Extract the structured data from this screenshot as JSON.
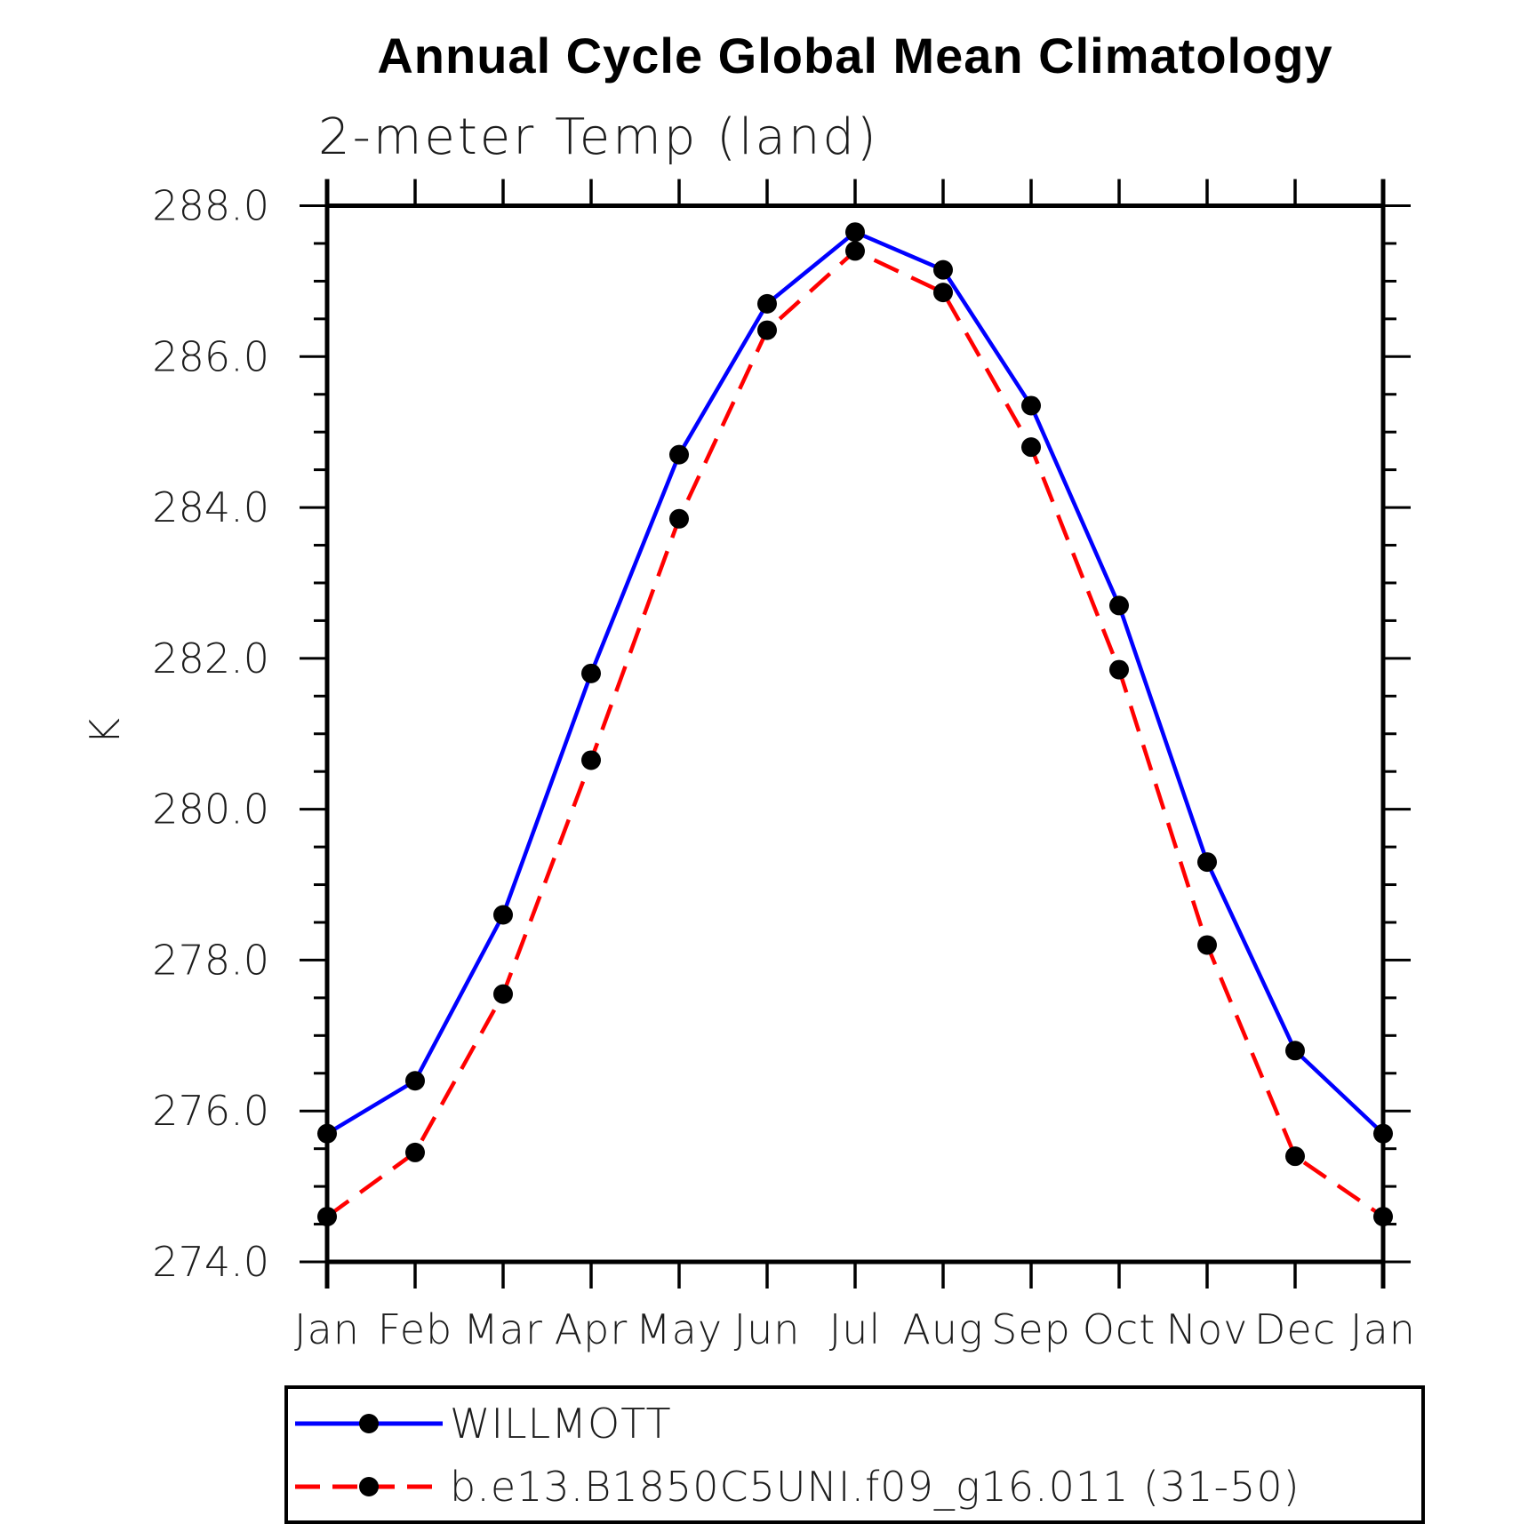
{
  "title": "Annual Cycle Global Mean Climatology",
  "subtitle": "2-meter Temp (land)",
  "chart_data": {
    "type": "line",
    "title": "Annual Cycle Global Mean Climatology",
    "subtitle": "2-meter Temp (land)",
    "ylabel": "K",
    "xlabel": "",
    "categories": [
      "Jan",
      "Feb",
      "Mar",
      "Apr",
      "May",
      "Jun",
      "Jul",
      "Aug",
      "Sep",
      "Oct",
      "Nov",
      "Dec",
      "Jan"
    ],
    "series": [
      {
        "name": "WILLMOTT",
        "color": "#0000ff",
        "line_style": "solid",
        "marker": "filled-black-circle",
        "values": [
          275.7,
          276.4,
          278.6,
          281.8,
          284.7,
          286.7,
          287.65,
          287.15,
          285.35,
          282.7,
          279.3,
          276.8,
          275.7
        ]
      },
      {
        "name": "b.e13.B1850C5UNI.f09_g16.011 (31-50)",
        "color": "#ff0000",
        "line_style": "dashed",
        "marker": "filled-black-circle",
        "values": [
          274.6,
          275.45,
          277.55,
          280.65,
          283.85,
          286.35,
          287.4,
          286.85,
          284.8,
          281.85,
          278.2,
          275.4,
          274.6
        ]
      }
    ],
    "ylim": [
      274.0,
      288.0
    ],
    "ytick_major_interval": 2.0,
    "ytick_minor_interval": 0.5,
    "ytick_labels": [
      "274.0",
      "276.0",
      "278.0",
      "280.0",
      "282.0",
      "284.0",
      "286.0",
      "288.0"
    ],
    "grid": false,
    "legend_position": "bottom"
  },
  "colors": {
    "series1": "#0000ff",
    "series2": "#ff0000",
    "marker": "#000000",
    "axis": "#000000",
    "background": "#ffffff"
  }
}
